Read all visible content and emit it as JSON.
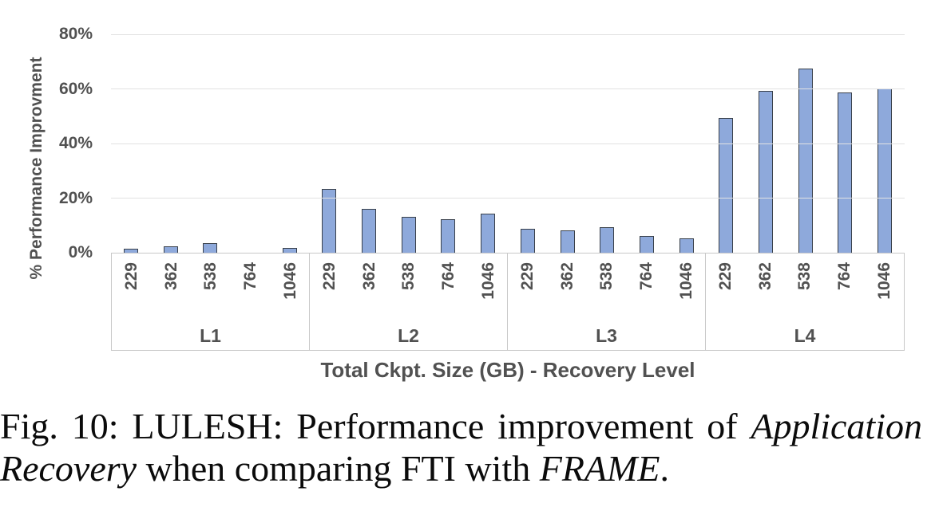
{
  "chart_data": {
    "type": "bar",
    "title": "",
    "ylabel": "% Performance Improvment",
    "xlabel": "Total Ckpt. Size (GB) - Recovery Level",
    "unit": "%",
    "ylim": [
      0,
      80
    ],
    "yticks": [
      {
        "value": 0,
        "label": "0%"
      },
      {
        "value": 20,
        "label": "20%"
      },
      {
        "value": 40,
        "label": "40%"
      },
      {
        "value": 60,
        "label": "60%"
      },
      {
        "value": 80,
        "label": "80%"
      }
    ],
    "categories": [
      "229",
      "362",
      "538",
      "764",
      "1046"
    ],
    "groups": [
      {
        "label": "L1",
        "values": [
          1.5,
          2.4,
          3.4,
          0,
          1.9
        ]
      },
      {
        "label": "L2",
        "values": [
          23.4,
          16.2,
          13.2,
          12.2,
          14.2
        ]
      },
      {
        "label": "L3",
        "values": [
          8.8,
          8.2,
          9.3,
          6.1,
          5.4
        ]
      },
      {
        "label": "L4",
        "values": [
          49.4,
          59.4,
          67.4,
          58.7,
          60.1
        ]
      }
    ],
    "grid": true,
    "legend": false,
    "colors": {
      "bar_fill": "#8EA9DB",
      "bar_border": "#39404A",
      "gridline": "#E2E2E2",
      "band_border": "#C8C8C8",
      "axis_text": "#515151"
    }
  },
  "caption": {
    "line1": [
      {
        "text": "Fig. 10: LULESH: Performance improvement of ",
        "italic": false
      },
      {
        "text": "Application",
        "italic": true
      }
    ],
    "line2": [
      {
        "text": "Recovery",
        "italic": true
      },
      {
        "text": " when comparing FTI with ",
        "italic": false
      },
      {
        "text": "FRAME",
        "italic": true
      },
      {
        "text": ".",
        "italic": false
      }
    ]
  }
}
